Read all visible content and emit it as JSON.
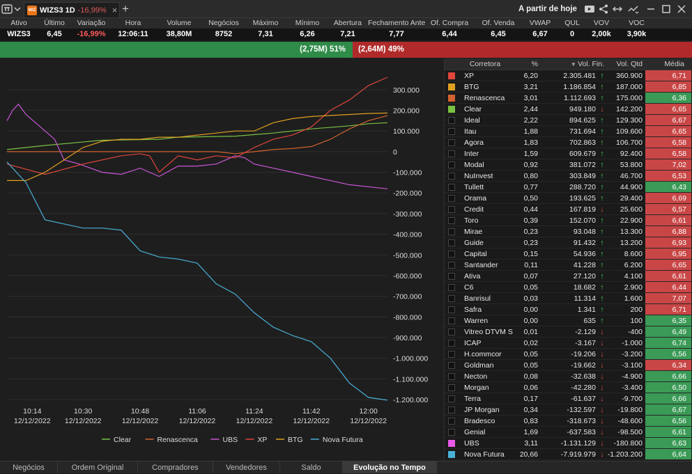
{
  "window": {
    "tab_ticker": "WIZS3 1D",
    "tab_change": "-16,99%",
    "logo_text": "WIZ",
    "right_label": "A partir de hoje"
  },
  "quote": {
    "headers": [
      "Ativo",
      "Último",
      "Variação",
      "Hora",
      "Volume",
      "Negócios",
      "Máximo",
      "Mínimo",
      "Abertura",
      "Fechamento Anterior",
      "Of. Compra",
      "Of. Venda",
      "VWAP",
      "QUL",
      "VOV",
      "VOC"
    ],
    "values": [
      "WIZS3",
      "6,45",
      "-16,99%",
      "12:06:11",
      "38,80M",
      "8752",
      "7,31",
      "6,26",
      "7,21",
      "7,77",
      "6,44",
      "6,45",
      "6,67",
      "0",
      "2,00k",
      "3,90k"
    ]
  },
  "balance": {
    "buy": "(2,75M) 51%",
    "sell": "(2,64M) 49%"
  },
  "chart_data": {
    "type": "line",
    "x_ticks": [
      {
        "time": "10:14",
        "date": "12/12/2022",
        "h": 10.233
      },
      {
        "time": "10:30",
        "date": "12/12/2022",
        "h": 10.5
      },
      {
        "time": "10:48",
        "date": "12/12/2022",
        "h": 10.8
      },
      {
        "time": "11:06",
        "date": "12/12/2022",
        "h": 11.1
      },
      {
        "time": "11:24",
        "date": "12/12/2022",
        "h": 11.4
      },
      {
        "time": "11:42",
        "date": "12/12/2022",
        "h": 11.7
      },
      {
        "time": "12:00",
        "date": "12/12/2022",
        "h": 12.0
      }
    ],
    "x_range": [
      10.1,
      12.1
    ],
    "ylim": [
      -1200000,
      350000
    ],
    "y_ticks": [
      {
        "v": 300000,
        "label": "300.000"
      },
      {
        "v": 200000,
        "label": "200.000"
      },
      {
        "v": 100000,
        "label": "100.000"
      },
      {
        "v": 0,
        "label": "0"
      },
      {
        "v": -100000,
        "label": "-100.000"
      },
      {
        "v": -200000,
        "label": "-200.000"
      },
      {
        "v": -300000,
        "label": "-300.000"
      },
      {
        "v": -400000,
        "label": "-400.000"
      },
      {
        "v": -500000,
        "label": "-500.000"
      },
      {
        "v": -600000,
        "label": "-600.000"
      },
      {
        "v": -700000,
        "label": "-700.000"
      },
      {
        "v": -800000,
        "label": "-800.000"
      },
      {
        "v": -900000,
        "label": "-900.000"
      },
      {
        "v": -1000000,
        "label": "-1.000.000"
      },
      {
        "v": -1100000,
        "label": "-1.100.000"
      },
      {
        "v": -1200000,
        "label": "-1.200.000"
      }
    ],
    "series": [
      {
        "name": "Clear",
        "color": "#7ac142",
        "x": [
          10.1,
          10.3,
          10.6,
          10.9,
          11.0,
          11.3,
          11.5,
          11.6,
          11.7,
          11.9,
          12.0,
          12.1
        ],
        "y": [
          10000,
          30000,
          55000,
          60000,
          70000,
          75000,
          90000,
          100000,
          110000,
          125000,
          135000,
          140000
        ]
      },
      {
        "name": "Renascenca",
        "color": "#d2622e",
        "x": [
          10.1,
          10.4,
          10.7,
          10.8,
          10.9,
          11.0,
          11.2,
          11.3,
          11.4,
          11.5,
          11.6,
          11.7,
          11.8,
          11.9,
          12.0,
          12.1
        ],
        "y": [
          0,
          0,
          0,
          0,
          0,
          0,
          0,
          -10000,
          0,
          10000,
          15000,
          25000,
          60000,
          110000,
          150000,
          175000
        ]
      },
      {
        "name": "UBS",
        "color": "#c957d6",
        "x": [
          10.1,
          10.13,
          10.16,
          10.2,
          10.25,
          10.3,
          10.35,
          10.4,
          10.48,
          10.6,
          10.7,
          10.8,
          10.9,
          11.0,
          11.1,
          11.2,
          11.3,
          11.35,
          11.4,
          11.5,
          11.6,
          11.7,
          11.8,
          11.9,
          12.0,
          12.1
        ],
        "y": [
          150000,
          200000,
          230000,
          180000,
          140000,
          100000,
          60000,
          -40000,
          -60000,
          -100000,
          -110000,
          -80000,
          -120000,
          -70000,
          -70000,
          -60000,
          -20000,
          -30000,
          -60000,
          -80000,
          -100000,
          -120000,
          -140000,
          -160000,
          -170000,
          -180000
        ]
      },
      {
        "name": "XP",
        "color": "#e0463c",
        "x": [
          10.1,
          10.3,
          10.5,
          10.7,
          10.8,
          10.85,
          10.9,
          11.0,
          11.1,
          11.2,
          11.3,
          11.4,
          11.5,
          11.6,
          11.7,
          11.8,
          11.9,
          12.0,
          12.1
        ],
        "y": [
          -60000,
          -110000,
          -60000,
          -20000,
          -10000,
          -20000,
          -100000,
          -20000,
          -40000,
          -20000,
          -30000,
          20000,
          60000,
          80000,
          120000,
          200000,
          250000,
          320000,
          360000
        ]
      },
      {
        "name": "BTG",
        "color": "#e0a020",
        "x": [
          10.1,
          10.2,
          10.3,
          10.4,
          10.5,
          10.6,
          10.7,
          10.8,
          10.9,
          11.0,
          11.1,
          11.2,
          11.3,
          11.4,
          11.5,
          11.6,
          11.7,
          11.8,
          11.9,
          12.0,
          12.1
        ],
        "y": [
          -140000,
          -140000,
          -100000,
          -40000,
          20000,
          50000,
          60000,
          60000,
          70000,
          70000,
          80000,
          90000,
          100000,
          100000,
          140000,
          160000,
          170000,
          175000,
          180000,
          185000,
          187000
        ]
      },
      {
        "name": "Nova Futura",
        "color": "#4ab0d8",
        "x": [
          10.1,
          10.2,
          10.3,
          10.5,
          10.6,
          10.7,
          10.8,
          10.9,
          11.0,
          11.1,
          11.2,
          11.3,
          11.4,
          11.5,
          11.6,
          11.7,
          11.8,
          11.9,
          12.0,
          12.1
        ],
        "y": [
          -50000,
          -150000,
          -330000,
          -370000,
          -370000,
          -380000,
          -480000,
          -510000,
          -520000,
          -540000,
          -640000,
          -690000,
          -780000,
          -850000,
          -890000,
          -920000,
          -1000000,
          -1120000,
          -1190000,
          -1203200
        ]
      }
    ]
  },
  "table": {
    "headers": {
      "corretora": "Corretora",
      "pct": "%",
      "vol_fin": "Vol. Fin.",
      "vol_qtd": "Vol. Qtd",
      "media": "Média"
    },
    "rows": [
      {
        "sw": "#e0463c",
        "nm": "XP",
        "pc": "6,20",
        "vf": "2.305.481",
        "up": true,
        "vq": "360.900",
        "md": "6,71",
        "mc": "r"
      },
      {
        "sw": "#e0a020",
        "nm": "BTG",
        "pc": "3,21",
        "vf": "1.186.854",
        "up": true,
        "vq": "187.000",
        "md": "6,85",
        "mc": "r"
      },
      {
        "sw": "#d2622e",
        "nm": "Renascenca",
        "pc": "3,01",
        "vf": "1.112.693",
        "up": true,
        "vq": "175.000",
        "md": "6,36",
        "mc": "g"
      },
      {
        "sw": "#7ac142",
        "nm": "Clear",
        "pc": "2,44",
        "vf": "949.180",
        "up": false,
        "vq": "142.200",
        "md": "6,65",
        "mc": "r"
      },
      {
        "sw": "",
        "nm": "Ideal",
        "pc": "2,22",
        "vf": "894.625",
        "up": true,
        "vq": "129.300",
        "md": "6,67",
        "mc": "r"
      },
      {
        "sw": "",
        "nm": "Itau",
        "pc": "1,88",
        "vf": "731.694",
        "up": true,
        "vq": "109.600",
        "md": "6,65",
        "mc": "r"
      },
      {
        "sw": "",
        "nm": "Agora",
        "pc": "1,83",
        "vf": "702.863",
        "up": true,
        "vq": "106.700",
        "md": "6,58",
        "mc": "r"
      },
      {
        "sw": "",
        "nm": "Inter",
        "pc": "1,59",
        "vf": "609.679",
        "up": true,
        "vq": "92.400",
        "md": "6,58",
        "mc": "r"
      },
      {
        "sw": "",
        "nm": "Modal",
        "pc": "0,92",
        "vf": "381.072",
        "up": true,
        "vq": "53.800",
        "md": "7,02",
        "mc": "r"
      },
      {
        "sw": "",
        "nm": "NuInvest",
        "pc": "0,80",
        "vf": "303.849",
        "up": true,
        "vq": "46.700",
        "md": "6,53",
        "mc": "r"
      },
      {
        "sw": "",
        "nm": "Tullett",
        "pc": "0,77",
        "vf": "288.720",
        "up": true,
        "vq": "44.900",
        "md": "6,43",
        "mc": "g"
      },
      {
        "sw": "",
        "nm": "Orama",
        "pc": "0,50",
        "vf": "193.625",
        "up": true,
        "vq": "29.400",
        "md": "6,69",
        "mc": "r"
      },
      {
        "sw": "",
        "nm": "Credit",
        "pc": "0,44",
        "vf": "167.819",
        "up": false,
        "vq": "25.600",
        "md": "6,57",
        "mc": "r"
      },
      {
        "sw": "",
        "nm": "Toro",
        "pc": "0,39",
        "vf": "152.070",
        "up": true,
        "vq": "22.900",
        "md": "6,61",
        "mc": "r"
      },
      {
        "sw": "",
        "nm": "Mirae",
        "pc": "0,23",
        "vf": "93.048",
        "up": true,
        "vq": "13.300",
        "md": "6,88",
        "mc": "r"
      },
      {
        "sw": "",
        "nm": "Guide",
        "pc": "0,23",
        "vf": "91.432",
        "up": true,
        "vq": "13.200",
        "md": "6,93",
        "mc": "r"
      },
      {
        "sw": "",
        "nm": "Capital",
        "pc": "0,15",
        "vf": "54.936",
        "up": true,
        "vq": "8.600",
        "md": "6,95",
        "mc": "r"
      },
      {
        "sw": "",
        "nm": "Santander",
        "pc": "0,11",
        "vf": "41.228",
        "up": true,
        "vq": "6.200",
        "md": "6,65",
        "mc": "r"
      },
      {
        "sw": "",
        "nm": "Ativa",
        "pc": "0,07",
        "vf": "27.120",
        "up": true,
        "vq": "4.100",
        "md": "6,61",
        "mc": "r"
      },
      {
        "sw": "",
        "nm": "C6",
        "pc": "0,05",
        "vf": "18.682",
        "up": true,
        "vq": "2.900",
        "md": "6,44",
        "mc": "r"
      },
      {
        "sw": "",
        "nm": "Banrisul",
        "pc": "0,03",
        "vf": "11.314",
        "up": true,
        "vq": "1.600",
        "md": "7,07",
        "mc": "r"
      },
      {
        "sw": "",
        "nm": "Safra",
        "pc": "0,00",
        "vf": "1.341",
        "up": true,
        "vq": "200",
        "md": "6,71",
        "mc": "r"
      },
      {
        "sw": "",
        "nm": "Warren",
        "pc": "0,00",
        "vf": "635",
        "up": true,
        "vq": "100",
        "md": "6,35",
        "mc": "g"
      },
      {
        "sw": "",
        "nm": "Vitreo DTVM S",
        "pc": "0,01",
        "vf": "-2.129",
        "up": false,
        "vq": "-400",
        "md": "6,49",
        "mc": "g"
      },
      {
        "sw": "",
        "nm": "ICAP",
        "pc": "0,02",
        "vf": "-3.167",
        "up": false,
        "vq": "-1.000",
        "md": "6,74",
        "mc": "g"
      },
      {
        "sw": "",
        "nm": "H.commcor",
        "pc": "0,05",
        "vf": "-19.206",
        "up": false,
        "vq": "-3.200",
        "md": "6,56",
        "mc": "g"
      },
      {
        "sw": "",
        "nm": "Goldman",
        "pc": "0,05",
        "vf": "-19.662",
        "up": false,
        "vq": "-3.100",
        "md": "6,34",
        "mc": "r"
      },
      {
        "sw": "",
        "nm": "Necton",
        "pc": "0,08",
        "vf": "-32.638",
        "up": false,
        "vq": "-4.900",
        "md": "6,66",
        "mc": "g"
      },
      {
        "sw": "",
        "nm": "Morgan",
        "pc": "0,06",
        "vf": "-42.280",
        "up": false,
        "vq": "-3.400",
        "md": "6,50",
        "mc": "g"
      },
      {
        "sw": "",
        "nm": "Terra",
        "pc": "0,17",
        "vf": "-61.637",
        "up": false,
        "vq": "-9.700",
        "md": "6,66",
        "mc": "g"
      },
      {
        "sw": "",
        "nm": "JP Morgan",
        "pc": "0,34",
        "vf": "-132.597",
        "up": false,
        "vq": "-19.800",
        "md": "6,67",
        "mc": "g"
      },
      {
        "sw": "",
        "nm": "Bradesco",
        "pc": "0,83",
        "vf": "-318.673",
        "up": false,
        "vq": "-48.600",
        "md": "6,56",
        "mc": "g"
      },
      {
        "sw": "",
        "nm": "Genial",
        "pc": "1,69",
        "vf": "-637.583",
        "up": false,
        "vq": "-98.500",
        "md": "6,61",
        "mc": "g"
      },
      {
        "sw": "#e85ae8",
        "nm": "UBS",
        "pc": "3,11",
        "vf": "-1.131.129",
        "up": false,
        "vq": "-180.800",
        "md": "6,63",
        "mc": "g"
      },
      {
        "sw": "#4ab0d8",
        "nm": "Nova Futura",
        "pc": "20,66",
        "vf": "-7.919.979",
        "up": false,
        "vq": "-1.203.200",
        "md": "6,64",
        "mc": "g"
      }
    ]
  },
  "bottom_tabs": [
    "Negócios",
    "Ordem Original",
    "Compradores",
    "Vendedores",
    "Saldo",
    "Evolução no Tempo"
  ],
  "colors": {
    "green": "#3fc25a",
    "red": "#e04848",
    "buy_bar": "#2e8b48",
    "sell_bar": "#b02a2a"
  }
}
